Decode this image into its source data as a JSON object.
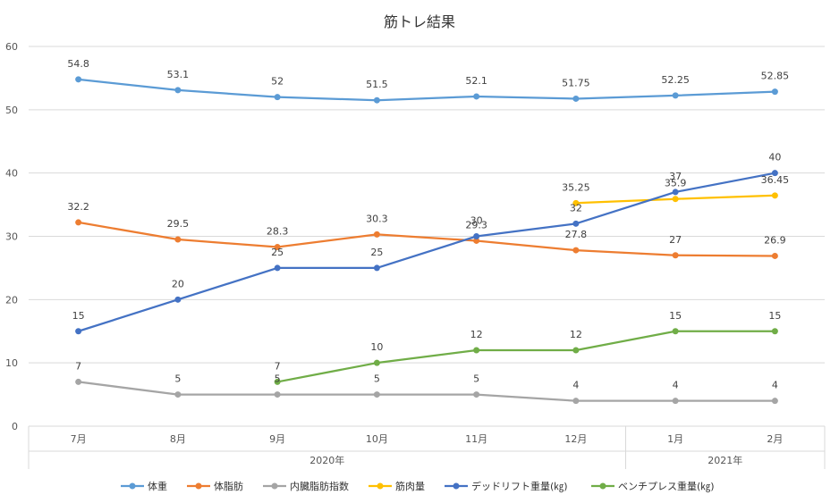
{
  "chart_data": {
    "type": "line",
    "title": "筋トレ結果",
    "categories": [
      "7月",
      "8月",
      "9月",
      "10月",
      "11月",
      "12月",
      "1月",
      "2月"
    ],
    "year_groups": [
      {
        "label": "2020年",
        "start": 0,
        "end": 5
      },
      {
        "label": "2021年",
        "start": 6,
        "end": 7
      }
    ],
    "ylim": [
      0,
      60
    ],
    "yticks": [
      0,
      10,
      20,
      30,
      40,
      50,
      60
    ],
    "grid": true,
    "legend_position": "bottom",
    "series": [
      {
        "name": "体重",
        "color": "#5B9BD5",
        "values": [
          54.8,
          53.1,
          52,
          51.5,
          52.1,
          51.75,
          52.25,
          52.85
        ]
      },
      {
        "name": "体脂肪",
        "color": "#ED7D31",
        "values": [
          32.2,
          29.5,
          28.3,
          30.3,
          29.3,
          27.8,
          27,
          26.9
        ]
      },
      {
        "name": "内臓脂肪指数",
        "color": "#A5A5A5",
        "values": [
          7,
          5,
          5,
          5,
          5,
          4,
          4,
          4
        ]
      },
      {
        "name": "筋肉量",
        "color": "#FFC000",
        "values": [
          null,
          null,
          null,
          null,
          null,
          35.25,
          35.9,
          36.45
        ]
      },
      {
        "name": "デッドリフト重量(㎏)",
        "color": "#4472C4",
        "values": [
          15,
          20,
          25,
          25,
          30,
          32,
          37,
          40
        ]
      },
      {
        "name": "ベンチプレス重量(㎏)",
        "color": "#70AD47",
        "values": [
          null,
          null,
          7,
          10,
          12,
          12,
          15,
          15
        ]
      }
    ]
  }
}
